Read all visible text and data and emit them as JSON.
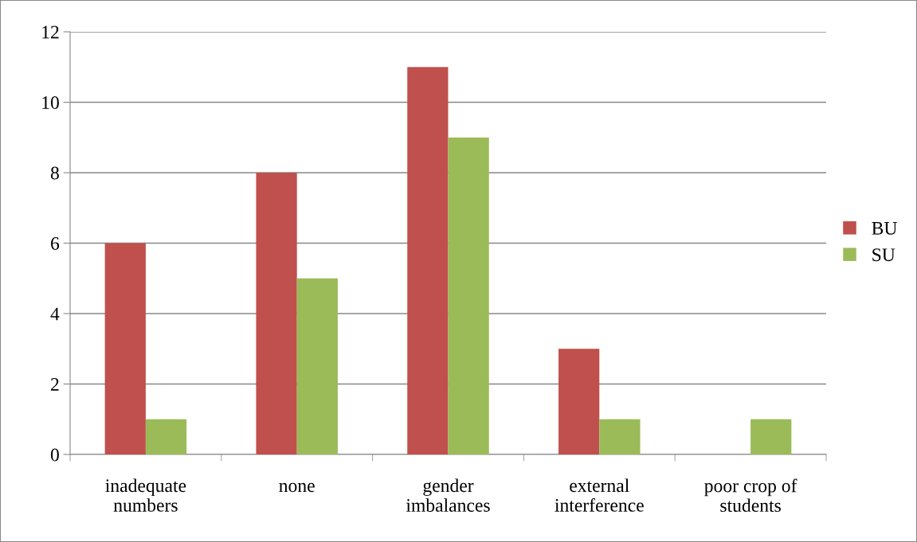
{
  "chart_data": {
    "type": "bar",
    "categories": [
      "inadequate\nnumbers",
      "none",
      "gender\nimbalances",
      "external\ninterference",
      "poor crop of\nstudents"
    ],
    "series": [
      {
        "name": "BU",
        "color": "#c0504d",
        "values": [
          6,
          8,
          11,
          3,
          0
        ]
      },
      {
        "name": "SU",
        "color": "#9bbb59",
        "values": [
          1,
          5,
          9,
          1,
          1
        ]
      }
    ],
    "ylim": [
      0,
      12
    ],
    "yticks": [
      0,
      2,
      4,
      6,
      8,
      10,
      12
    ],
    "grid": "y",
    "legend": "right"
  }
}
